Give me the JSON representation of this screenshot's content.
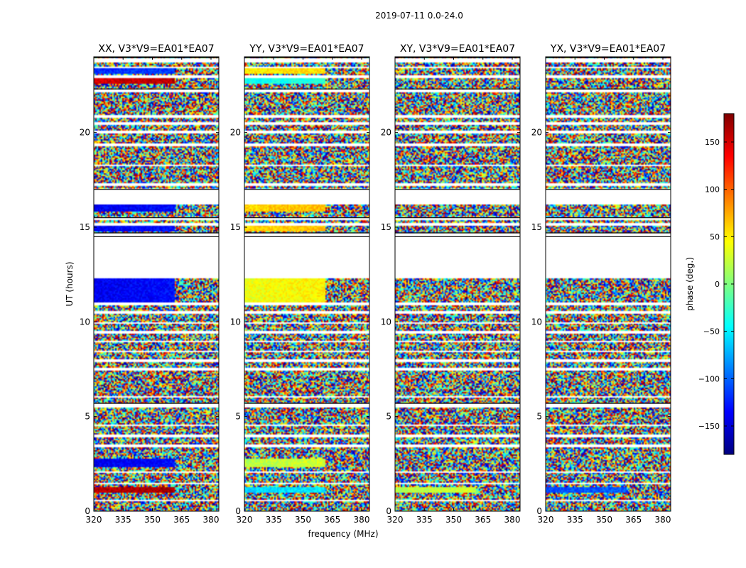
{
  "chart_data": {
    "type": "heatmap",
    "title": "2019-07-11 0.0-24.0",
    "xlabel": "frequency (MHz)",
    "ylabel": "UT (hours)",
    "xlim": [
      320,
      384
    ],
    "ylim": [
      0,
      24
    ],
    "x_ticks": [
      320,
      335,
      350,
      365,
      380
    ],
    "y_ticks": [
      0,
      5,
      10,
      15,
      20
    ],
    "colorbar": {
      "label": "phase (deg.)",
      "range": [
        -180,
        180
      ],
      "ticks": [
        150,
        100,
        50,
        0,
        -50,
        -100,
        -150
      ],
      "colormap": "jet",
      "colors": [
        "#00007f",
        "#0000ff",
        "#007fff",
        "#00ffff",
        "#7fff7f",
        "#ffff00",
        "#ff7f00",
        "#ff0000",
        "#7f0000"
      ]
    },
    "panels": [
      {
        "title": "XX, V3*V9=EA01*EA07",
        "coherent_bands": [
          {
            "ut": [
              23.1,
              23.4
            ],
            "phase": -120
          },
          {
            "ut": [
              22.6,
              22.9
            ],
            "phase": 150
          },
          {
            "ut": [
              15.8,
              16.2
            ],
            "phase": -140
          },
          {
            "ut": [
              14.8,
              15.1
            ],
            "phase": -140
          },
          {
            "ut": [
              11.0,
              12.3
            ],
            "phase": -140
          },
          {
            "ut": [
              2.3,
              2.8
            ],
            "phase": -140
          },
          {
            "ut": [
              1.0,
              1.3
            ],
            "phase": 160
          }
        ]
      },
      {
        "title": "YY, V3*V9=EA01*EA07",
        "coherent_bands": [
          {
            "ut": [
              23.1,
              23.4
            ],
            "phase": 50
          },
          {
            "ut": [
              22.6,
              22.9
            ],
            "phase": -40
          },
          {
            "ut": [
              15.8,
              16.2
            ],
            "phase": 60
          },
          {
            "ut": [
              14.8,
              15.1
            ],
            "phase": 60
          },
          {
            "ut": [
              11.0,
              12.3
            ],
            "phase": 40
          },
          {
            "ut": [
              2.3,
              2.8
            ],
            "phase": 20
          },
          {
            "ut": [
              1.0,
              1.3
            ],
            "phase": -60
          }
        ]
      },
      {
        "title": "XY, V3*V9=EA01*EA07",
        "coherent_bands": [
          {
            "ut": [
              1.0,
              1.3
            ],
            "phase": 20
          }
        ]
      },
      {
        "title": "YX, V3*V9=EA01*EA07",
        "coherent_bands": [
          {
            "ut": [
              1.0,
              1.3
            ],
            "phase": -110
          }
        ]
      }
    ],
    "gaps_ut": [
      [
        23.7,
        23.95
      ],
      [
        23.4,
        23.5
      ],
      [
        22.9,
        23.0
      ],
      [
        22.1,
        22.3
      ],
      [
        20.8,
        20.95
      ],
      [
        20.4,
        20.55
      ],
      [
        19.95,
        20.1
      ],
      [
        19.3,
        19.4
      ],
      [
        18.2,
        18.3
      ],
      [
        17.2,
        17.3
      ],
      [
        16.2,
        17.0
      ],
      [
        15.35,
        15.5
      ],
      [
        15.1,
        15.2
      ],
      [
        14.5,
        14.7
      ],
      [
        12.3,
        14.5
      ],
      [
        10.9,
        11.0
      ],
      [
        10.4,
        10.55
      ],
      [
        9.9,
        10.0
      ],
      [
        9.4,
        9.5
      ],
      [
        8.9,
        9.0
      ],
      [
        8.4,
        8.5
      ],
      [
        7.9,
        8.0
      ],
      [
        7.4,
        7.55
      ],
      [
        6.0,
        6.1
      ],
      [
        5.5,
        5.7
      ],
      [
        4.5,
        4.6
      ],
      [
        3.9,
        4.05
      ],
      [
        3.4,
        3.5
      ],
      [
        2.0,
        2.1
      ],
      [
        1.4,
        1.5
      ],
      [
        0.5,
        0.6
      ]
    ]
  }
}
